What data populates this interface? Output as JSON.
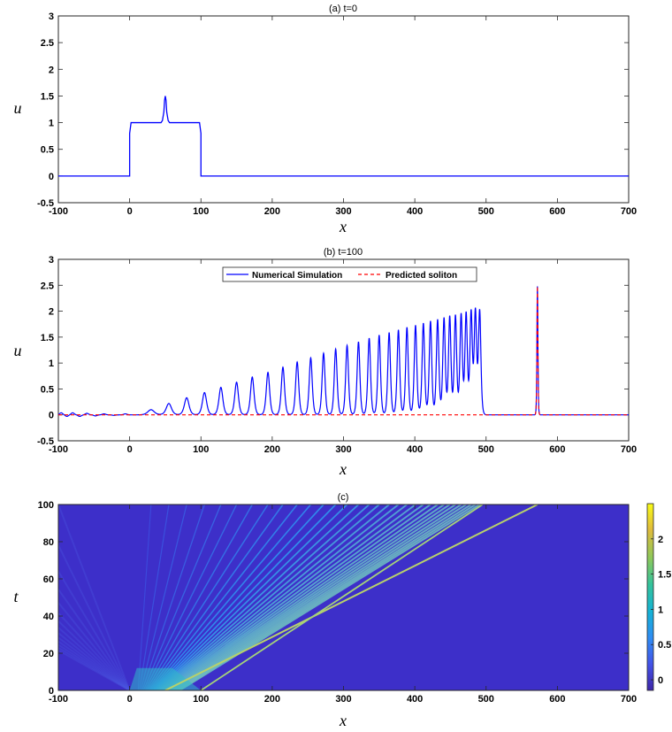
{
  "chart_data": [
    {
      "id": "a",
      "type": "line",
      "title": "(a) t=0",
      "xlabel": "x",
      "ylabel": "u",
      "xlim": [
        -100,
        700
      ],
      "ylim": [
        -0.5,
        3
      ],
      "xticks": [
        -100,
        0,
        100,
        200,
        300,
        400,
        500,
        600,
        700
      ],
      "yticks": [
        -0.5,
        0,
        0.5,
        1,
        1.5,
        2,
        2.5,
        3
      ],
      "xtick_labels": [
        "-100",
        "0",
        "100",
        "200",
        "300",
        "400",
        "500",
        "600",
        "700"
      ],
      "ytick_labels": [
        "-0.5",
        "0",
        "0.5",
        "1",
        "1.5",
        "2",
        "2.5",
        "3"
      ],
      "series": [
        {
          "color": "#0000ff",
          "x": [
            -100,
            0,
            0,
            2,
            44,
            46,
            48,
            49,
            50,
            51,
            52,
            54,
            56,
            98,
            100,
            100,
            700
          ],
          "y": [
            0,
            0,
            0.8,
            1,
            1,
            1.04,
            1.2,
            1.42,
            1.5,
            1.42,
            1.2,
            1.04,
            1,
            1,
            0.8,
            0,
            0
          ]
        }
      ]
    },
    {
      "id": "b",
      "type": "line",
      "title": "(b) t=100",
      "xlabel": "x",
      "ylabel": "u",
      "xlim": [
        -100,
        700
      ],
      "ylim": [
        -0.5,
        3
      ],
      "xticks": [
        -100,
        0,
        100,
        200,
        300,
        400,
        500,
        600,
        700
      ],
      "yticks": [
        -0.5,
        0,
        0.5,
        1,
        1.5,
        2,
        2.5,
        3
      ],
      "xtick_labels": [
        "-100",
        "0",
        "100",
        "200",
        "300",
        "400",
        "500",
        "600",
        "700"
      ],
      "ytick_labels": [
        "-0.5",
        "0",
        "0.5",
        "1",
        "1.5",
        "2",
        "2.5",
        "3"
      ],
      "legend": {
        "position": "top-center",
        "entries": [
          {
            "label": "Numerical Simulation",
            "color": "#0000ff",
            "style": "solid"
          },
          {
            "label": "Predicted soliton",
            "color": "#ff0000",
            "style": "dashed"
          }
        ]
      },
      "peaks": {
        "x": [
          30,
          55,
          80,
          105,
          128,
          150,
          172,
          194,
          215,
          235,
          254,
          272,
          289,
          305,
          321,
          336,
          350,
          364,
          377,
          389,
          401,
          412,
          422,
          432,
          441,
          449,
          457,
          465,
          472,
          479,
          485,
          491
        ],
        "y": [
          0.1,
          0.22,
          0.33,
          0.43,
          0.53,
          0.63,
          0.73,
          0.82,
          0.92,
          1.02,
          1.1,
          1.19,
          1.27,
          1.34,
          1.41,
          1.48,
          1.54,
          1.59,
          1.64,
          1.69,
          1.73,
          1.77,
          1.81,
          1.84,
          1.87,
          1.9,
          1.92,
          1.94,
          1.96,
          1.98,
          1.99,
          2.0
        ]
      },
      "tail_ripples": {
        "x": [
          -96,
          -88,
          -80,
          -70,
          -60,
          -48,
          -36,
          -22,
          -6
        ],
        "y": [
          0.04,
          -0.03,
          0.04,
          -0.03,
          0.03,
          -0.02,
          0.02,
          -0.01,
          0.02
        ]
      },
      "soliton": {
        "x": 572,
        "y": 2.48
      }
    },
    {
      "id": "c",
      "type": "heatmap",
      "title": "(c)",
      "xlabel": "x",
      "ylabel": "t",
      "xlim": [
        -100,
        700
      ],
      "ylim": [
        0,
        100
      ],
      "xticks": [
        -100,
        0,
        100,
        200,
        300,
        400,
        500,
        600,
        700
      ],
      "yticks": [
        0,
        20,
        40,
        60,
        80,
        100
      ],
      "xtick_labels": [
        "-100",
        "0",
        "100",
        "200",
        "300",
        "400",
        "500",
        "600",
        "700"
      ],
      "ytick_labels": [
        "0",
        "20",
        "40",
        "60",
        "80",
        "100"
      ],
      "colorbar": {
        "range": [
          -0.15,
          2.5
        ],
        "ticks": [
          0,
          0.5,
          1,
          1.5,
          2
        ],
        "tick_labels": [
          "0",
          "0.5",
          "1",
          "1.5",
          "2"
        ],
        "colormap": "parula"
      },
      "background_color": "#3d2fc9",
      "soliton_line": {
        "x0": 50,
        "x100": 572,
        "color": "#b8d16a"
      }
    }
  ]
}
